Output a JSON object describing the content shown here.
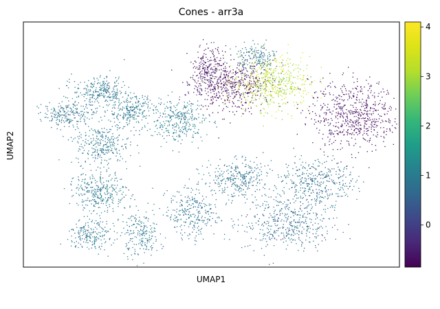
{
  "chart_data": {
    "type": "scatter",
    "title": "Cones - arr3a",
    "xlabel": "UMAP1",
    "ylabel": "UMAP2",
    "xticks": [],
    "yticks": [],
    "colorbar": {
      "colormap": "viridis",
      "range": [
        -0.85,
        4.1
      ],
      "ticks": [
        0,
        1,
        2,
        3,
        4
      ],
      "tick_labels": [
        "0",
        "1",
        "2",
        "3",
        "4"
      ]
    },
    "clusters": [
      {
        "x": 0.55,
        "y": 0.75,
        "value": -0.8
      },
      {
        "x": 0.66,
        "y": 0.75,
        "value": 3.2
      },
      {
        "x": 0.88,
        "y": 0.62,
        "value": -0.7
      },
      {
        "x": 0.62,
        "y": 0.86,
        "value": 0.8
      },
      {
        "x": 0.49,
        "y": 0.8,
        "value": -0.6
      },
      {
        "x": 0.2,
        "y": 0.72,
        "value": 0.9
      },
      {
        "x": 0.12,
        "y": 0.63,
        "value": 0.8
      },
      {
        "x": 0.28,
        "y": 0.64,
        "value": 0.9
      },
      {
        "x": 0.21,
        "y": 0.5,
        "value": 0.9
      },
      {
        "x": 0.2,
        "y": 0.31,
        "value": 0.9
      },
      {
        "x": 0.41,
        "y": 0.6,
        "value": 1.0
      },
      {
        "x": 0.57,
        "y": 0.36,
        "value": 0.8
      },
      {
        "x": 0.78,
        "y": 0.35,
        "value": 0.8
      },
      {
        "x": 0.7,
        "y": 0.18,
        "value": 0.7
      },
      {
        "x": 0.45,
        "y": 0.22,
        "value": 0.8
      },
      {
        "x": 0.31,
        "y": 0.14,
        "value": 0.9
      },
      {
        "x": 0.18,
        "y": 0.13,
        "value": 0.9
      }
    ]
  },
  "colors": {
    "viridis_0": "#440154",
    "viridis_1": "#3b528b",
    "viridis_2": "#21918c",
    "viridis_3": "#5ec962",
    "viridis_4": "#fde725"
  }
}
